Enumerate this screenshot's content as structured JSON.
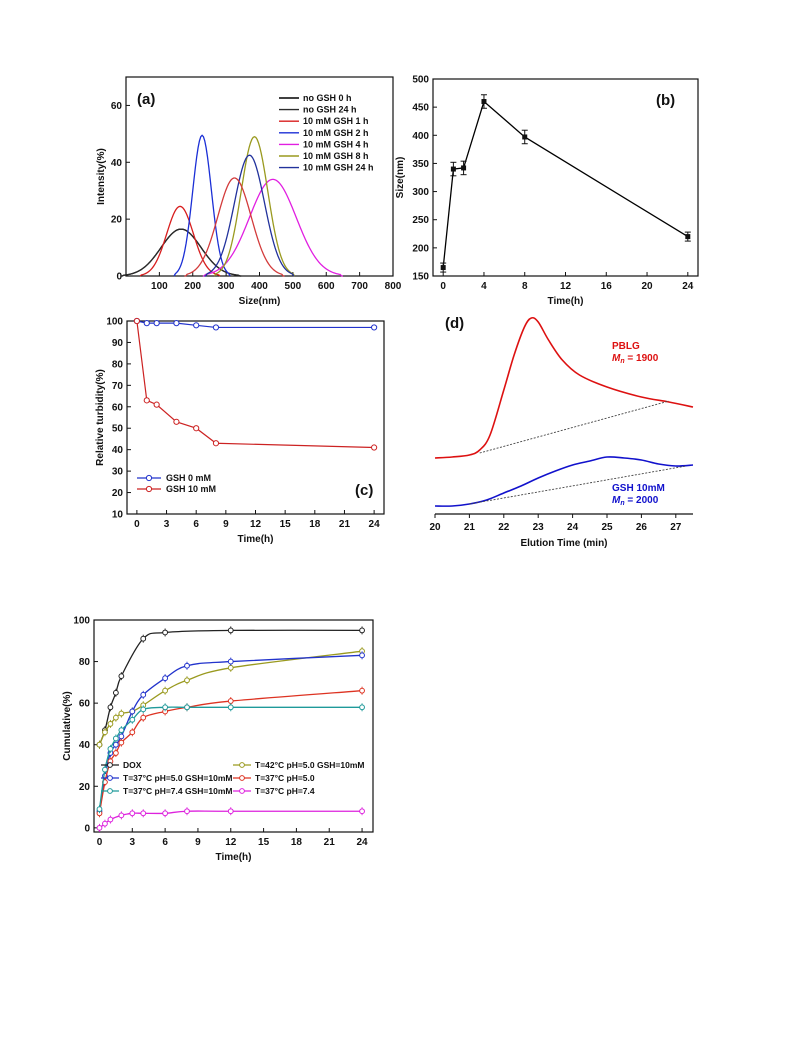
{
  "chart_data": [
    {
      "id": "a",
      "type": "line",
      "panel_label": "(a)",
      "xlabel": "Size(nm)",
      "ylabel": "Intensity(%)",
      "xlim": [
        0,
        800
      ],
      "ylim": [
        0,
        70
      ],
      "xticks": [
        100,
        200,
        300,
        400,
        500,
        600,
        700,
        800
      ],
      "yticks": [
        0,
        20,
        40,
        60
      ],
      "legend_position": "top-right",
      "series": [
        {
          "name": "no GSH 0 h",
          "color": "#000000",
          "peak_x": 165,
          "peak_y": 16.5,
          "width": 60
        },
        {
          "name": "no GSH 24 h",
          "color": "#2b2b2b",
          "peak_x": 165,
          "peak_y": 16.5,
          "width": 60
        },
        {
          "name": "10 mM GSH 1 h",
          "color": "#d81e1e",
          "peak_x": 162,
          "peak_y": 24.5,
          "width": 40
        },
        {
          "name": "10 mM GSH 2 h",
          "color": "#1b2fd6",
          "peak_x": 228,
          "peak_y": 49.5,
          "width": 28
        },
        {
          "name": "10 mM GSH 4 h",
          "color": "#e11fe1",
          "peak_x": 440,
          "peak_y": 34,
          "width": 70
        },
        {
          "name": "10 mM GSH 8 h",
          "color": "#9a9a1f",
          "peak_x": 385,
          "peak_y": 49,
          "width": 40
        },
        {
          "name": "10 mM GSH 24 h",
          "color": "#22329c",
          "peak_x": 370,
          "peak_y": 42.5,
          "width": 45
        },
        {
          "name": "",
          "color": "#d33b3b",
          "peak_x": 325,
          "peak_y": 34.5,
          "width": 50
        }
      ]
    },
    {
      "id": "b",
      "type": "line",
      "panel_label": "(b)",
      "xlabel": "Time(h)",
      "ylabel": "Size(nm)",
      "xlim": [
        -1,
        25
      ],
      "ylim": [
        150,
        500
      ],
      "xticks": [
        0,
        4,
        8,
        12,
        16,
        20,
        24
      ],
      "yticks": [
        150,
        200,
        250,
        300,
        350,
        400,
        450,
        500
      ],
      "series": [
        {
          "name": "",
          "color": "#000000",
          "x": [
            0,
            1,
            2,
            4,
            8,
            24
          ],
          "y": [
            165,
            340,
            342,
            460,
            397,
            220
          ],
          "err": [
            8,
            12,
            12,
            12,
            12,
            8
          ]
        }
      ]
    },
    {
      "id": "c",
      "type": "line",
      "panel_label": "(c)",
      "xlabel": "Time(h)",
      "ylabel": "Relative turbidity(%)",
      "xlim": [
        -1,
        25
      ],
      "ylim": [
        10,
        100
      ],
      "xticks": [
        0,
        3,
        6,
        9,
        12,
        15,
        18,
        21,
        24
      ],
      "yticks": [
        10,
        20,
        30,
        40,
        50,
        60,
        70,
        80,
        90,
        100
      ],
      "legend_position": "bottom-left",
      "series": [
        {
          "name": "GSH 0 mM",
          "color": "#2233cc",
          "x": [
            0,
            1,
            2,
            4,
            6,
            8,
            24
          ],
          "y": [
            100,
            99,
            99,
            99,
            98,
            97,
            97
          ]
        },
        {
          "name": "GSH 10 mM",
          "color": "#cc2222",
          "x": [
            0,
            1,
            2,
            4,
            6,
            8,
            24
          ],
          "y": [
            100,
            63,
            61,
            53,
            50,
            43,
            41
          ]
        }
      ]
    },
    {
      "id": "d",
      "type": "line",
      "panel_label": "(d)",
      "xlabel": "Elution Time (min)",
      "xlim": [
        20,
        27.5
      ],
      "xticks": [
        20,
        21,
        22,
        23,
        24,
        25,
        26,
        27
      ],
      "annotations": [
        {
          "line1": "PBLG",
          "line2": "M",
          "sub": "n",
          "line2_rest": " = 1900",
          "color": "#dd1111"
        },
        {
          "line1": "GSH 10mM",
          "line2": "M",
          "sub": "n",
          "line2_rest": " = 2000",
          "color": "#1111cc"
        }
      ],
      "series": [
        {
          "name": "",
          "color": "#dd1111"
        },
        {
          "name": "",
          "color": "#1111cc"
        }
      ]
    },
    {
      "id": "e",
      "type": "line",
      "xlabel": "Time(h)",
      "ylabel": "Cumulative(%)",
      "xlim": [
        -0.5,
        25
      ],
      "ylim": [
        -2,
        100
      ],
      "xticks": [
        0,
        3,
        6,
        9,
        12,
        15,
        18,
        21,
        24
      ],
      "yticks": [
        0,
        20,
        40,
        60,
        80,
        100
      ],
      "legend_position": "bottom",
      "series": [
        {
          "name": "DOX",
          "color": "#222222",
          "x": [
            0,
            0.5,
            1,
            1.5,
            2,
            4,
            6,
            12,
            24
          ],
          "y": [
            40,
            47,
            58,
            65,
            73,
            91,
            94,
            95,
            95
          ]
        },
        {
          "name": "T=42°C pH=5.0 GSH=10mM",
          "color": "#9a9a1f",
          "x": [
            0,
            0.5,
            1,
            1.5,
            2,
            3,
            4,
            6,
            8,
            12,
            24
          ],
          "y": [
            40,
            46,
            50,
            53,
            55,
            56,
            59,
            66,
            71,
            77,
            85
          ]
        },
        {
          "name": "T=37°C pH=5.0 GSH=10mM",
          "color": "#2233cc",
          "x": [
            0,
            0.5,
            1,
            1.5,
            2,
            3,
            4,
            6,
            8,
            12,
            24
          ],
          "y": [
            8,
            25,
            36,
            40,
            44,
            56,
            64,
            72,
            78,
            80,
            83
          ]
        },
        {
          "name": "T=37°C pH=5.0",
          "color": "#dd3322",
          "x": [
            0,
            0.5,
            1,
            1.5,
            2,
            3,
            4,
            6,
            8,
            12,
            24
          ],
          "y": [
            7,
            22,
            32,
            36,
            41,
            46,
            53,
            56,
            58,
            61,
            66
          ]
        },
        {
          "name": "T=37°C pH=7.4 GSH=10mM",
          "color": "#1f9a9a",
          "x": [
            0,
            0.5,
            1,
            1.5,
            2,
            3,
            4,
            6,
            8,
            12,
            24
          ],
          "y": [
            9,
            28,
            38,
            43,
            47,
            52,
            57,
            58,
            58,
            58,
            58
          ]
        },
        {
          "name": "T=37°C pH=7.4",
          "color": "#dd22dd",
          "x": [
            0,
            0.5,
            1,
            2,
            3,
            4,
            6,
            8,
            12,
            24
          ],
          "y": [
            0,
            2,
            4,
            6,
            7,
            7,
            7,
            8,
            8,
            8
          ]
        }
      ]
    }
  ]
}
